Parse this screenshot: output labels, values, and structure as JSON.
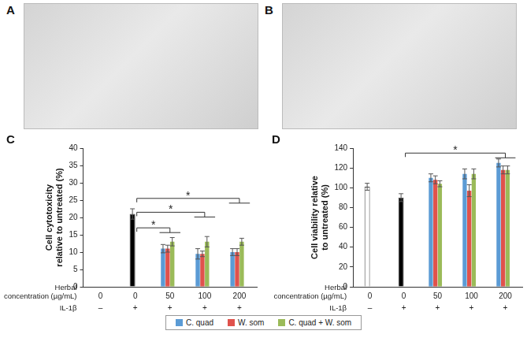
{
  "image_panels": [
    "A",
    "B"
  ],
  "chart_data": [
    {
      "panel": "C",
      "type": "bar",
      "y_label": [
        "Cell cytotoxicity",
        "relative to untreated (%)"
      ],
      "x_label": [
        "Herbal",
        "concentration (µg/mL)"
      ],
      "categories": [
        "0",
        "0",
        "50",
        "100",
        "200"
      ],
      "il1b_label": "IL-1β",
      "il1b": [
        "–",
        "+",
        "+",
        "+",
        "+"
      ],
      "ylim": [
        0,
        40
      ],
      "yticks": [
        0,
        5,
        10,
        15,
        20,
        25,
        30,
        35,
        40
      ],
      "grid": false,
      "legend": "bottom",
      "series": [
        {
          "colors": [
            "#ffffff",
            "#000000",
            null,
            null,
            null
          ],
          "values": [
            0,
            21,
            null,
            null,
            null
          ],
          "errors": [
            null,
            1.5,
            null,
            null,
            null
          ]
        },
        {
          "name": "C. quad",
          "color": "#5b9bd5",
          "values": [
            null,
            null,
            11,
            9.5,
            10
          ],
          "errors": [
            null,
            null,
            1.2,
            1.5,
            1
          ]
        },
        {
          "name": "W. som",
          "color": "#e0524c",
          "values": [
            null,
            null,
            11,
            9.5,
            10
          ],
          "errors": [
            null,
            null,
            1,
            0.8,
            1
          ]
        },
        {
          "name": "C. quad + W. som",
          "color": "#9bbb59",
          "values": [
            null,
            null,
            13,
            13,
            13
          ],
          "errors": [
            null,
            null,
            1.2,
            1.5,
            1
          ]
        }
      ],
      "significance": [
        {
          "from": 1,
          "to": 2,
          "y": 17,
          "label": "*"
        },
        {
          "from": 1,
          "to": 3,
          "y": 21.5,
          "label": "*"
        },
        {
          "from": 1,
          "to": 4,
          "y": 25.5,
          "label": "*"
        }
      ]
    },
    {
      "panel": "D",
      "type": "bar",
      "y_label": [
        "Cell viability relative",
        "to untreated (%)"
      ],
      "x_label": [
        "Herbal",
        "concentration (µg/mL)"
      ],
      "categories": [
        "0",
        "0",
        "50",
        "100",
        "200"
      ],
      "il1b_label": "IL-1β",
      "il1b": [
        "–",
        "+",
        "+",
        "+",
        "+"
      ],
      "ylim": [
        0,
        140
      ],
      "yticks": [
        0,
        20,
        40,
        60,
        80,
        100,
        120,
        140
      ],
      "grid": false,
      "legend": "bottom",
      "series": [
        {
          "colors": [
            "#ffffff",
            "#000000",
            null,
            null,
            null
          ],
          "values": [
            101,
            90,
            null,
            null,
            null
          ],
          "errors": [
            3.5,
            4,
            null,
            null,
            null
          ]
        },
        {
          "name": "C. quad",
          "color": "#5b9bd5",
          "values": [
            null,
            null,
            110,
            114,
            125
          ],
          "errors": [
            null,
            null,
            4,
            5,
            4
          ]
        },
        {
          "name": "W. som",
          "color": "#e0524c",
          "values": [
            null,
            null,
            108,
            97,
            118
          ],
          "errors": [
            null,
            null,
            4,
            6,
            4
          ]
        },
        {
          "name": "C. quad + W. som",
          "color": "#9bbb59",
          "values": [
            null,
            null,
            104,
            114,
            118
          ],
          "errors": [
            null,
            null,
            3,
            5,
            4
          ]
        }
      ],
      "significance": [
        {
          "from": 1,
          "to": 4,
          "y": 135,
          "label": "*"
        }
      ]
    }
  ]
}
